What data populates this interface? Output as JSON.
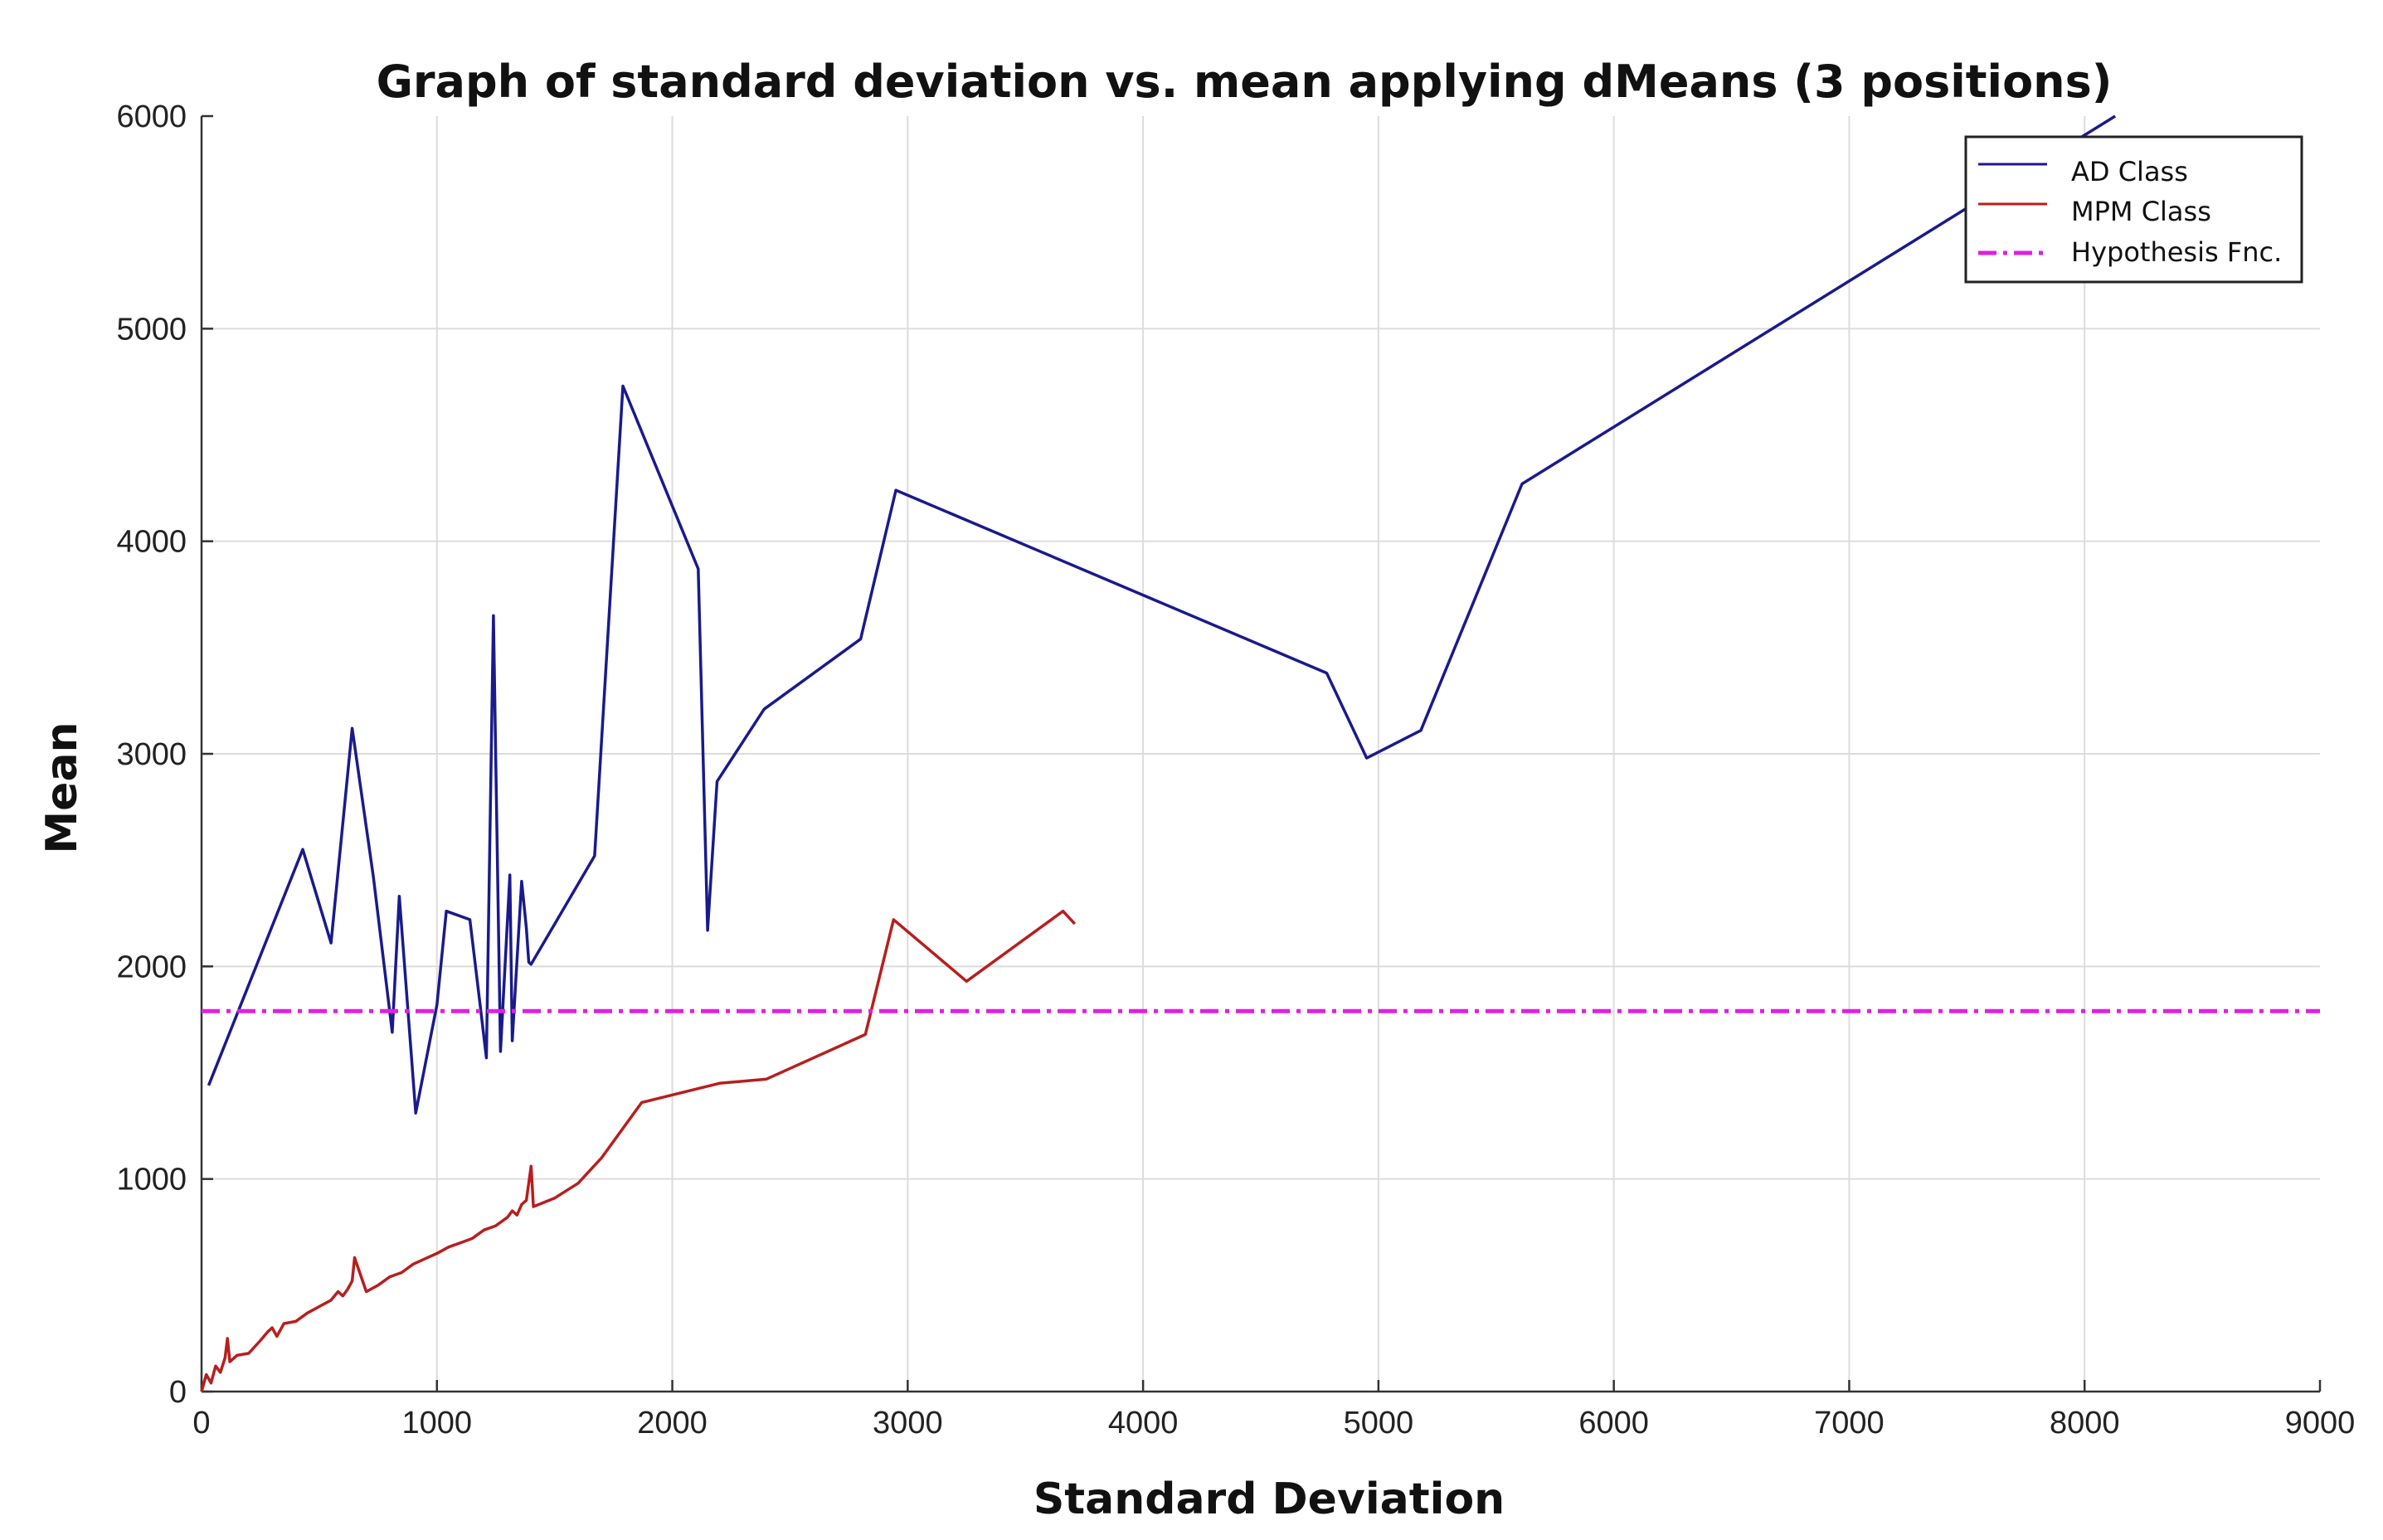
{
  "chart_data": {
    "type": "line",
    "title": "Graph of standard deviation vs. mean applying dMeans (3 positions)",
    "xlabel": "Standard Deviation",
    "ylabel": "Mean",
    "xlim": [
      0,
      9000
    ],
    "ylim": [
      0,
      6000
    ],
    "xticks": [
      0,
      1000,
      2000,
      3000,
      4000,
      5000,
      6000,
      7000,
      8000,
      9000
    ],
    "yticks": [
      0,
      1000,
      2000,
      3000,
      4000,
      5000,
      6000
    ],
    "xtick_labels": [
      "0",
      "1000",
      "2000",
      "3000",
      "4000",
      "5000",
      "6000",
      "7000",
      "8000",
      "9000"
    ],
    "ytick_labels": [
      "0",
      "1000",
      "2000",
      "3000",
      "4000",
      "5000",
      "6000"
    ],
    "grid": true,
    "legend_position": "top-right",
    "series": [
      {
        "name": "AD Class",
        "color": "#1a1a8c",
        "style": "solid",
        "x": [
          30,
          430,
          550,
          640,
          730,
          810,
          840,
          910,
          1000,
          1040,
          1140,
          1180,
          1210,
          1240,
          1270,
          1310,
          1320,
          1360,
          1380,
          1390,
          1400,
          1670,
          1790,
          2110,
          2150,
          2190,
          2390,
          2800,
          2950,
          4780,
          4950,
          5180,
          5610,
          8130
        ],
        "values": [
          1440,
          2550,
          2110,
          3120,
          2420,
          1690,
          2330,
          1310,
          1820,
          2260,
          2220,
          1850,
          1570,
          3650,
          1600,
          2430,
          1650,
          2400,
          2180,
          2020,
          2010,
          2520,
          4730,
          3870,
          2170,
          2870,
          3210,
          3540,
          4240,
          3380,
          2980,
          3110,
          4270,
          6000
        ]
      },
      {
        "name": "MPM Class",
        "color": "#b81e1e",
        "style": "solid",
        "x": [
          0,
          20,
          40,
          60,
          80,
          100,
          110,
          120,
          150,
          200,
          250,
          280,
          300,
          320,
          350,
          400,
          450,
          500,
          550,
          580,
          600,
          620,
          640,
          650,
          700,
          750,
          800,
          850,
          900,
          1000,
          1050,
          1100,
          1150,
          1200,
          1250,
          1300,
          1320,
          1340,
          1360,
          1380,
          1400,
          1410,
          1500,
          1600,
          1700,
          1870,
          2200,
          2400,
          2820,
          2940,
          3250,
          3660,
          3710
        ],
        "values": [
          0,
          80,
          40,
          120,
          90,
          160,
          250,
          140,
          170,
          180,
          240,
          280,
          300,
          260,
          320,
          330,
          370,
          400,
          430,
          470,
          450,
          480,
          520,
          630,
          470,
          500,
          540,
          560,
          600,
          650,
          680,
          700,
          720,
          760,
          780,
          820,
          850,
          830,
          880,
          900,
          1060,
          870,
          910,
          980,
          1100,
          1360,
          1450,
          1470,
          1680,
          2220,
          1930,
          2260,
          2200
        ]
      },
      {
        "name": "Hypothesis Fnc.",
        "color": "#e020e0",
        "style": "dashdot",
        "x": [
          0,
          9000
        ],
        "values": [
          1790,
          1790
        ]
      }
    ]
  }
}
